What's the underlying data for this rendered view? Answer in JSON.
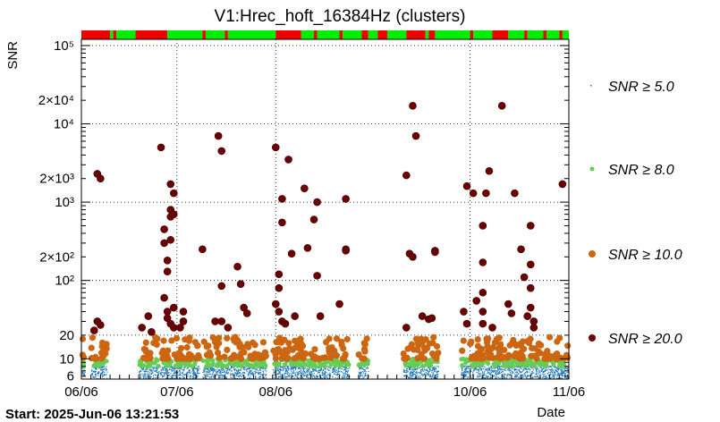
{
  "chart_data": {
    "type": "scatter",
    "title": "V1:Hrec_hoft_16384Hz (clusters)",
    "ylabel": "SNR",
    "xlabel": "Date",
    "footer": "Start: 2025-Jun-06 13:21:53",
    "y_scale": "log",
    "ylim": [
      5.5,
      120000
    ],
    "x_date_range": [
      "2025-06-06",
      "2025-11-06"
    ],
    "y_ticks": [
      {
        "v": 6,
        "label": "6"
      },
      {
        "v": 10,
        "label": "10"
      },
      {
        "v": 20,
        "label": "20"
      },
      {
        "v": 100,
        "label": "10²"
      },
      {
        "v": 200,
        "label": "2×10²"
      },
      {
        "v": 1000,
        "label": "10³"
      },
      {
        "v": 2000,
        "label": "2×10³"
      },
      {
        "v": 10000,
        "label": "10⁴"
      },
      {
        "v": 20000,
        "label": "2×10⁴"
      },
      {
        "v": 100000,
        "label": "10⁵"
      }
    ],
    "x_ticks": [
      {
        "date": "2025-06-06",
        "label": "06/06"
      },
      {
        "date": "2025-07-06",
        "label": "07/06"
      },
      {
        "date": "2025-08-06",
        "label": "08/06"
      },
      {
        "date": "2025-10-06",
        "label": "10/06"
      },
      {
        "date": "2025-11-06",
        "label": "11/06"
      }
    ],
    "grid": true,
    "legend": [
      {
        "label": "SNR ≥ 5.0",
        "color": "#1f77b4",
        "marker": "dot"
      },
      {
        "label": "SNR ≥ 8.0",
        "color": "#66cc55",
        "marker": "circle"
      },
      {
        "label": "SNR ≥ 10.0",
        "color": "#cc6611",
        "marker": "circle"
      },
      {
        "label": "SNR ≥ 20.0",
        "color": "#6b0000",
        "marker": "circle"
      }
    ],
    "legend_placement": "right",
    "segment_colors": {
      "on": "#00ee00",
      "off": "#ee0000"
    },
    "state_segments": [
      {
        "start": "2025-06-06",
        "end": "2025-06-15",
        "state": "off"
      },
      {
        "start": "2025-06-15",
        "end": "2025-06-16",
        "state": "on"
      },
      {
        "start": "2025-06-16",
        "end": "2025-06-17",
        "state": "off"
      },
      {
        "start": "2025-06-17",
        "end": "2025-06-23",
        "state": "on"
      },
      {
        "start": "2025-06-23",
        "end": "2025-07-03",
        "state": "off"
      },
      {
        "start": "2025-07-03",
        "end": "2025-07-14",
        "state": "on"
      },
      {
        "start": "2025-07-14",
        "end": "2025-07-15",
        "state": "off"
      },
      {
        "start": "2025-07-15",
        "end": "2025-07-21",
        "state": "on"
      },
      {
        "start": "2025-07-21",
        "end": "2025-07-22",
        "state": "off"
      },
      {
        "start": "2025-07-22",
        "end": "2025-08-06",
        "state": "on"
      },
      {
        "start": "2025-08-06",
        "end": "2025-08-14",
        "state": "off"
      },
      {
        "start": "2025-08-14",
        "end": "2025-08-18",
        "state": "on"
      },
      {
        "start": "2025-08-18",
        "end": "2025-08-19",
        "state": "off"
      },
      {
        "start": "2025-08-19",
        "end": "2025-08-26",
        "state": "on"
      },
      {
        "start": "2025-08-26",
        "end": "2025-08-27",
        "state": "off"
      },
      {
        "start": "2025-08-27",
        "end": "2025-09-02",
        "state": "on"
      },
      {
        "start": "2025-09-02",
        "end": "2025-09-04",
        "state": "off"
      },
      {
        "start": "2025-09-04",
        "end": "2025-09-07",
        "state": "on"
      },
      {
        "start": "2025-09-07",
        "end": "2025-09-10",
        "state": "off"
      },
      {
        "start": "2025-09-10",
        "end": "2025-09-16",
        "state": "on"
      },
      {
        "start": "2025-09-16",
        "end": "2025-09-22",
        "state": "off"
      },
      {
        "start": "2025-09-22",
        "end": "2025-09-23",
        "state": "on"
      },
      {
        "start": "2025-09-23",
        "end": "2025-09-25",
        "state": "off"
      },
      {
        "start": "2025-09-25",
        "end": "2025-10-06",
        "state": "on"
      },
      {
        "start": "2025-10-06",
        "end": "2025-10-07",
        "state": "off"
      },
      {
        "start": "2025-10-07",
        "end": "2025-10-13",
        "state": "on"
      },
      {
        "start": "2025-10-13",
        "end": "2025-10-18",
        "state": "off"
      },
      {
        "start": "2025-10-18",
        "end": "2025-10-23",
        "state": "on"
      },
      {
        "start": "2025-10-23",
        "end": "2025-10-24",
        "state": "off"
      },
      {
        "start": "2025-10-24",
        "end": "2025-10-29",
        "state": "on"
      },
      {
        "start": "2025-10-29",
        "end": "2025-10-30",
        "state": "off"
      },
      {
        "start": "2025-10-30",
        "end": "2025-11-03",
        "state": "on"
      },
      {
        "start": "2025-11-03",
        "end": "2025-11-04",
        "state": "off"
      },
      {
        "start": "2025-11-04",
        "end": "2025-11-06",
        "state": "on"
      }
    ],
    "series": [
      {
        "name": "SNR ≥ 20.0",
        "points": [
          {
            "x": "2025-06-11",
            "y": 2300
          },
          {
            "x": "2025-06-12",
            "y": 2000
          },
          {
            "x": "2025-06-10",
            "y": 23
          },
          {
            "x": "2025-06-11",
            "y": 30
          },
          {
            "x": "2025-06-12",
            "y": 27
          },
          {
            "x": "2025-06-25",
            "y": 25
          },
          {
            "x": "2025-06-27",
            "y": 35
          },
          {
            "x": "2025-06-28",
            "y": 22
          },
          {
            "x": "2025-07-01",
            "y": 5000
          },
          {
            "x": "2025-07-02",
            "y": 60
          },
          {
            "x": "2025-07-02",
            "y": 300
          },
          {
            "x": "2025-07-02",
            "y": 450
          },
          {
            "x": "2025-07-03",
            "y": 180
          },
          {
            "x": "2025-07-03",
            "y": 130
          },
          {
            "x": "2025-07-04",
            "y": 800
          },
          {
            "x": "2025-07-04",
            "y": 1700
          },
          {
            "x": "2025-07-04",
            "y": 650
          },
          {
            "x": "2025-07-04",
            "y": 330
          },
          {
            "x": "2025-07-05",
            "y": 700
          },
          {
            "x": "2025-07-05",
            "y": 1300
          },
          {
            "x": "2025-07-03",
            "y": 40
          },
          {
            "x": "2025-07-03",
            "y": 33
          },
          {
            "x": "2025-07-04",
            "y": 28
          },
          {
            "x": "2025-07-05",
            "y": 25
          },
          {
            "x": "2025-07-05",
            "y": 45
          },
          {
            "x": "2025-07-07",
            "y": 25
          },
          {
            "x": "2025-07-08",
            "y": 40
          },
          {
            "x": "2025-07-08",
            "y": 30
          },
          {
            "x": "2025-07-14",
            "y": 250
          },
          {
            "x": "2025-07-18",
            "y": 30
          },
          {
            "x": "2025-07-19",
            "y": 7000
          },
          {
            "x": "2025-07-20",
            "y": 4500
          },
          {
            "x": "2025-07-20",
            "y": 85
          },
          {
            "x": "2025-07-20",
            "y": 30
          },
          {
            "x": "2025-07-22",
            "y": 25
          },
          {
            "x": "2025-07-25",
            "y": 150
          },
          {
            "x": "2025-07-26",
            "y": 90
          },
          {
            "x": "2025-07-27",
            "y": 45
          },
          {
            "x": "2025-07-28",
            "y": 38
          },
          {
            "x": "2025-08-06",
            "y": 5000
          },
          {
            "x": "2025-08-06",
            "y": 50
          },
          {
            "x": "2025-08-07",
            "y": 80
          },
          {
            "x": "2025-08-07",
            "y": 120
          },
          {
            "x": "2025-08-08",
            "y": 1100
          },
          {
            "x": "2025-08-08",
            "y": 550
          },
          {
            "x": "2025-08-08",
            "y": 30
          },
          {
            "x": "2025-08-07",
            "y": 40
          },
          {
            "x": "2025-08-09",
            "y": 28
          },
          {
            "x": "2025-08-10",
            "y": 3500
          },
          {
            "x": "2025-08-11",
            "y": 220
          },
          {
            "x": "2025-08-12",
            "y": 35
          },
          {
            "x": "2025-08-15",
            "y": 1500
          },
          {
            "x": "2025-08-16",
            "y": 260
          },
          {
            "x": "2025-08-18",
            "y": 600
          },
          {
            "x": "2025-08-19",
            "y": 1000
          },
          {
            "x": "2025-08-19",
            "y": 115
          },
          {
            "x": "2025-08-20",
            "y": 35
          },
          {
            "x": "2025-08-26",
            "y": 50
          },
          {
            "x": "2025-08-28",
            "y": 1100
          },
          {
            "x": "2025-08-28",
            "y": 250
          },
          {
            "x": "2025-08-28",
            "y": 240
          },
          {
            "x": "2025-09-16",
            "y": 2200
          },
          {
            "x": "2025-09-18",
            "y": 17000
          },
          {
            "x": "2025-09-19",
            "y": 7000
          },
          {
            "x": "2025-09-17",
            "y": 220
          },
          {
            "x": "2025-09-18",
            "y": 200
          },
          {
            "x": "2025-09-21",
            "y": 35
          },
          {
            "x": "2025-09-23",
            "y": 32
          },
          {
            "x": "2025-09-24",
            "y": 33
          },
          {
            "x": "2025-09-16",
            "y": 25
          },
          {
            "x": "2025-09-25",
            "y": 240
          },
          {
            "x": "2025-09-25",
            "y": 230
          },
          {
            "x": "2025-10-05",
            "y": 1600
          },
          {
            "x": "2025-10-04",
            "y": 40
          },
          {
            "x": "2025-10-05",
            "y": 28
          },
          {
            "x": "2025-10-07",
            "y": 1300
          },
          {
            "x": "2025-10-08",
            "y": 55
          },
          {
            "x": "2025-10-10",
            "y": 500
          },
          {
            "x": "2025-10-10",
            "y": 170
          },
          {
            "x": "2025-10-10",
            "y": 70
          },
          {
            "x": "2025-10-11",
            "y": 1300
          },
          {
            "x": "2025-10-10",
            "y": 40
          },
          {
            "x": "2025-10-10",
            "y": 28
          },
          {
            "x": "2025-10-12",
            "y": 2500
          },
          {
            "x": "2025-10-13",
            "y": 25
          },
          {
            "x": "2025-10-16",
            "y": 17000
          },
          {
            "x": "2025-10-18",
            "y": 50
          },
          {
            "x": "2025-10-19",
            "y": 38
          },
          {
            "x": "2025-10-20",
            "y": 1300
          },
          {
            "x": "2025-10-22",
            "y": 250
          },
          {
            "x": "2025-10-23",
            "y": 110
          },
          {
            "x": "2025-10-24",
            "y": 35
          },
          {
            "x": "2025-10-25",
            "y": 45
          },
          {
            "x": "2025-10-25",
            "y": 500
          },
          {
            "x": "2025-10-25",
            "y": 160
          },
          {
            "x": "2025-10-25",
            "y": 80
          },
          {
            "x": "2025-10-26",
            "y": 30
          },
          {
            "x": "2025-10-26",
            "y": 25
          },
          {
            "x": "2025-11-04",
            "y": 1700
          }
        ]
      }
    ]
  }
}
